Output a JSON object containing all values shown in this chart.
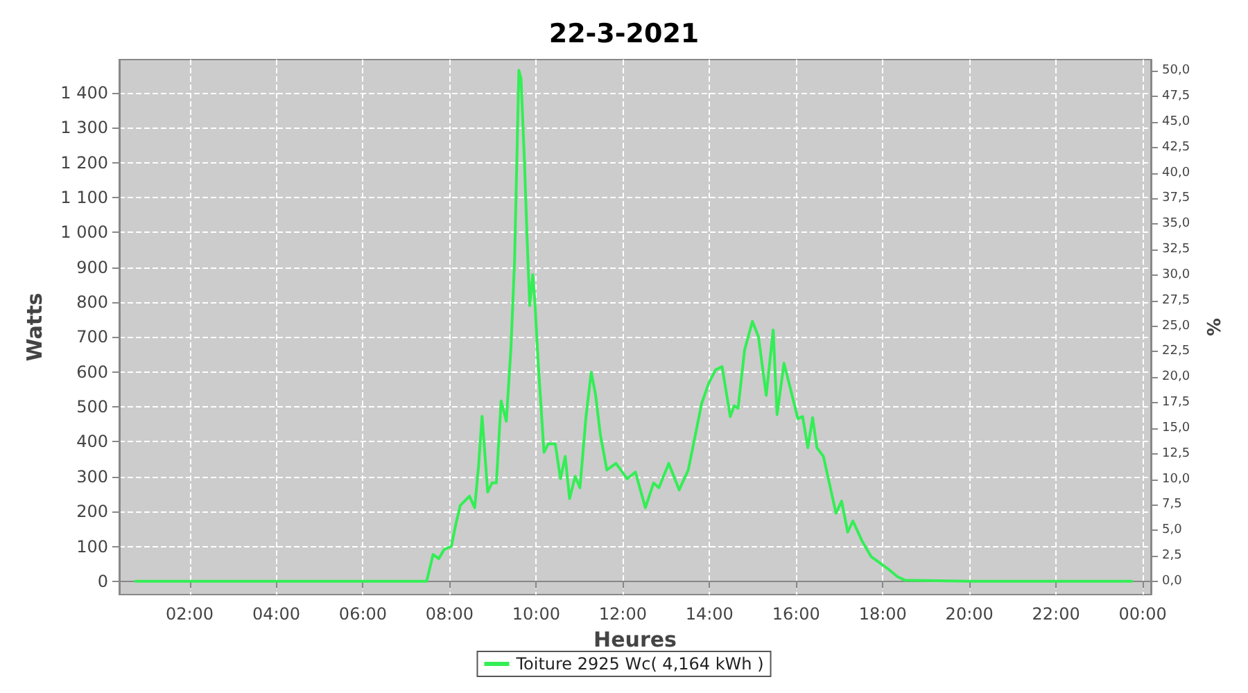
{
  "chart_data": {
    "type": "line",
    "title": "22-3-2021",
    "xlabel": "Heures",
    "ylabel": "Watts",
    "y2label": "%",
    "x": [
      0.75,
      7.47,
      7.62,
      7.75,
      7.88,
      8.04,
      8.15,
      8.25,
      8.46,
      8.58,
      8.67,
      8.75,
      8.88,
      8.98,
      9.08,
      9.19,
      9.31,
      9.42,
      9.5,
      9.6,
      9.65,
      9.73,
      9.79,
      9.85,
      9.92,
      9.97,
      10.04,
      10.18,
      10.28,
      10.44,
      10.56,
      10.67,
      10.77,
      10.9,
      11.01,
      11.15,
      11.27,
      11.37,
      11.48,
      11.63,
      11.84,
      12.1,
      12.29,
      12.52,
      12.71,
      12.83,
      13.06,
      13.3,
      13.51,
      13.82,
      13.98,
      14.14,
      14.29,
      14.48,
      14.57,
      14.66,
      14.81,
      14.99,
      15.13,
      15.31,
      15.47,
      15.56,
      15.72,
      15.85,
      16.04,
      16.15,
      16.27,
      16.38,
      16.48,
      16.63,
      16.79,
      16.92,
      17.05,
      17.19,
      17.31,
      17.52,
      17.73,
      17.94,
      18.15,
      18.33,
      18.51,
      20,
      22,
      23.75
    ],
    "series": [
      {
        "name": "Toiture 2925 Wc( 4,164 kWh )",
        "color": "#33ee55",
        "values": [
          0,
          0,
          77,
          65,
          92,
          100,
          167,
          218,
          244,
          211,
          332,
          473,
          256,
          282,
          282,
          517,
          459,
          676,
          917,
          1464,
          1440,
          1197,
          981,
          790,
          879,
          801,
          637,
          370,
          394,
          394,
          294,
          358,
          237,
          301,
          268,
          473,
          599,
          535,
          421,
          319,
          338,
          294,
          313,
          211,
          282,
          268,
          338,
          262,
          319,
          510,
          567,
          606,
          615,
          472,
          503,
          496,
          663,
          745,
          701,
          533,
          720,
          478,
          625,
          561,
          466,
          472,
          383,
          469,
          383,
          358,
          268,
          195,
          230,
          141,
          173,
          116,
          71,
          52,
          33,
          14,
          3,
          0,
          0,
          0
        ]
      }
    ],
    "xlim": [
      0.375,
      24.19
    ],
    "xticks": [
      {
        "value": 2,
        "label": "02:00"
      },
      {
        "value": 4,
        "label": "04:00"
      },
      {
        "value": 6,
        "label": "06:00"
      },
      {
        "value": 8,
        "label": "08:00"
      },
      {
        "value": 10,
        "label": "10:00"
      },
      {
        "value": 12,
        "label": "12:00"
      },
      {
        "value": 14,
        "label": "14:00"
      },
      {
        "value": 16,
        "label": "16:00"
      },
      {
        "value": 18,
        "label": "18:00"
      },
      {
        "value": 20,
        "label": "20:00"
      },
      {
        "value": 22,
        "label": "22:00"
      },
      {
        "value": 24,
        "label": "00:00"
      }
    ],
    "ylim": [
      -38,
      1495
    ],
    "yticks": [
      0,
      100,
      200,
      300,
      400,
      500,
      600,
      700,
      800,
      900,
      {
        "value": 1000,
        "label": "1 000"
      },
      {
        "value": 1100,
        "label": "1 100"
      },
      {
        "value": 1200,
        "label": "1 200"
      },
      {
        "value": 1300,
        "label": "1 300"
      },
      {
        "value": 1400,
        "label": "1 400"
      }
    ],
    "y2lim": [
      -1.3,
      51.1
    ],
    "y2ticks": [
      {
        "value": 0,
        "label": "0,0"
      },
      {
        "value": 2.5,
        "label": "2,5"
      },
      {
        "value": 5,
        "label": "5,0"
      },
      {
        "value": 7.5,
        "label": "7,5"
      },
      {
        "value": 10,
        "label": "10,0"
      },
      {
        "value": 12.5,
        "label": "12,5"
      },
      {
        "value": 15,
        "label": "15,0"
      },
      {
        "value": 17.5,
        "label": "17,5"
      },
      {
        "value": 20,
        "label": "20,0"
      },
      {
        "value": 22.5,
        "label": "22,5"
      },
      {
        "value": 25,
        "label": "25,0"
      },
      {
        "value": 27.5,
        "label": "27,5"
      },
      {
        "value": 30,
        "label": "30,0"
      },
      {
        "value": 32.5,
        "label": "32,5"
      },
      {
        "value": 35,
        "label": "35,0"
      },
      {
        "value": 37.5,
        "label": "37,5"
      },
      {
        "value": 40,
        "label": "40,0"
      },
      {
        "value": 42.5,
        "label": "42,5"
      },
      {
        "value": 45,
        "label": "45,0"
      },
      {
        "value": 47.5,
        "label": "47,5"
      },
      {
        "value": 50,
        "label": "50,0"
      }
    ],
    "grid": true,
    "legend": "bottom",
    "line_style": "solid"
  }
}
